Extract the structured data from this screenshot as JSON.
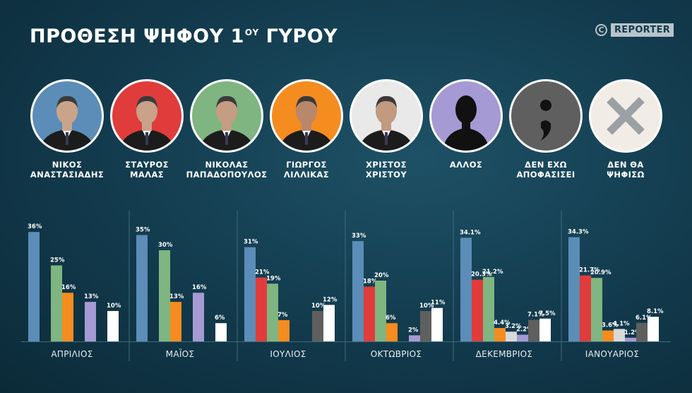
{
  "header": {
    "title": "ΠΡΟΘΕΣΗ ΨΗΦΟΥ 1",
    "title_sup": "ΟΥ",
    "title_tail": " ΓΥΡΟΥ",
    "copyright_symbol": "C",
    "brand": "REPORTER"
  },
  "candidates": [
    {
      "label": "ΝΙΚΟΣ\nΑΝΑΣΤΑΣΙΑΔΗΣ",
      "color": "#5b8db8",
      "icon": "portrait"
    },
    {
      "label": "ΣΤΑΥΡΟΣ\nΜΑΛΑΣ",
      "color": "#e03c3c",
      "icon": "portrait"
    },
    {
      "label": "ΝΙΚΟΛΑΣ\nΠΑΠΑΔΟΠΟΥΛΟΣ",
      "color": "#7fb580",
      "icon": "portrait"
    },
    {
      "label": "ΓΙΩΡΓΟΣ\nΛΙΛΛΙΚΑΣ",
      "color": "#f58c1f",
      "icon": "portrait"
    },
    {
      "label": "ΧΡΙΣΤΟΣ\nΧΡΙΣΤΟΥ",
      "color": "#e9e9e9",
      "icon": "portrait"
    },
    {
      "label": "ΑΛΛΟΣ",
      "color": "#a59ad3",
      "icon": "silhouette-icon"
    },
    {
      "label": "ΔΕΝ ΕΧΩ\nΑΠΟΦΑΣΙΣΕΙ",
      "color": "#5f5f5f",
      "icon": "semicolon-icon"
    },
    {
      "label": "ΔΕΝ ΘΑ\nΨΗΦΙΣΩ",
      "color": "#f1ece6",
      "icon": "cross-icon"
    }
  ],
  "chart_data": {
    "type": "bar",
    "categories": [
      "ΑΠΡΙΛΙΟΣ",
      "ΜΑΪΟΣ",
      "ΙΟΥΛΙΟΣ",
      "ΟΚΤΩΒΡΙΟΣ",
      "ΔΕΚΕΜΒΡΙΟΣ",
      "ΙΑΝΟΥΑΡΙΟΣ"
    ],
    "ylim": [
      0,
      40
    ],
    "grid": false,
    "series": [
      {
        "name": "ΝΙΚΟΣ ΑΝΑΣΤΑΣΙΑΔΗΣ",
        "color": "#5b8db8",
        "values": [
          36,
          35,
          31,
          33,
          34.1,
          34.3
        ],
        "labels": [
          "36%",
          "35%",
          "31%",
          "33%",
          "34.1%",
          "34.3%"
        ]
      },
      {
        "name": "ΣΤΑΥΡΟΣ ΜΑΛΑΣ",
        "color": "#e03c3c",
        "values": [
          null,
          null,
          21,
          18,
          20.3,
          21.7
        ],
        "labels": [
          "",
          "",
          "21%",
          "18%",
          "20.3%",
          "21.7%"
        ]
      },
      {
        "name": "ΝΙΚΟΛΑΣ ΠΑΠΑΔΟΠΟΥΛΟΣ",
        "color": "#7fb580",
        "values": [
          25,
          30,
          19,
          20,
          21.2,
          20.9
        ],
        "labels": [
          "25%",
          "30%",
          "19%",
          "20%",
          "21.2%",
          "20.9%"
        ]
      },
      {
        "name": "ΓΙΩΡΓΟΣ ΛΙΛΛΙΚΑΣ",
        "color": "#f58c1f",
        "values": [
          16,
          13,
          7,
          6,
          4.4,
          3.6
        ],
        "labels": [
          "16%",
          "13%",
          "7%",
          "6%",
          "4.4%",
          "3.6%"
        ]
      },
      {
        "name": "ΧΡΙΣΤΟΣ ΧΡΙΣΤΟΥ",
        "color": "#d9d9d9",
        "values": [
          null,
          null,
          null,
          null,
          3.2,
          4.1
        ],
        "labels": [
          "",
          "",
          "",
          "",
          "3.2%",
          "4.1%"
        ]
      },
      {
        "name": "ΑΛΛΟΣ",
        "color": "#a59ad3",
        "values": [
          13,
          16,
          null,
          2,
          2.2,
          1.2
        ],
        "labels": [
          "13%",
          "16%",
          "",
          "2%",
          "2.2%",
          "1.2%"
        ]
      },
      {
        "name": "ΔΕΝ ΕΧΩ ΑΠΟΦΑΣΙΣΕΙ",
        "color": "#5f5f5f",
        "values": [
          null,
          null,
          10,
          10,
          7.1,
          6.1
        ],
        "labels": [
          "",
          "",
          "10%",
          "10%",
          "7.1%",
          "6.1%"
        ]
      },
      {
        "name": "ΔΕΝ ΘΑ ΨΗΦΙΣΩ",
        "color": "#ffffff",
        "values": [
          10,
          6,
          12,
          11,
          7.5,
          8.1
        ],
        "labels": [
          "10%",
          "6%",
          "12%",
          "11%",
          "7.5%",
          "8.1%"
        ]
      }
    ]
  }
}
